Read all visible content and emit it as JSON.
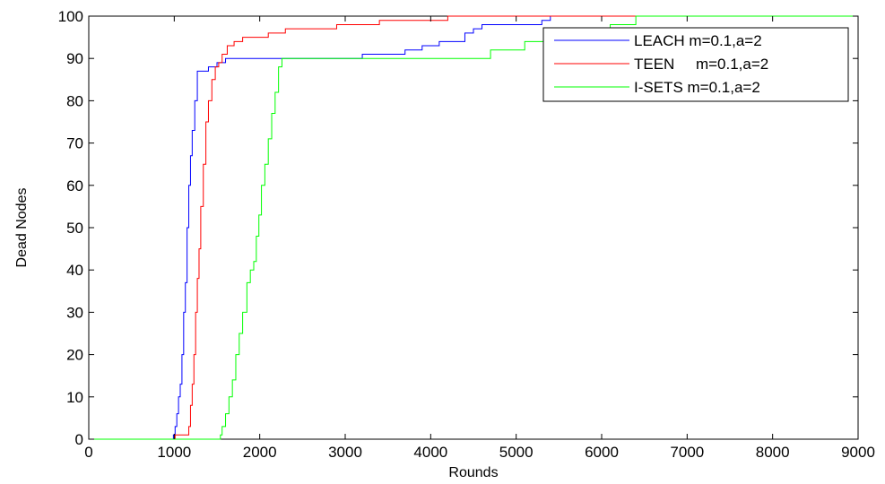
{
  "chart_data": {
    "type": "line",
    "title": "",
    "xlabel": "Rounds",
    "ylabel": "Dead Nodes",
    "xlim": [
      0,
      9000
    ],
    "ylim": [
      0,
      100
    ],
    "xticks": [
      0,
      1000,
      2000,
      3000,
      4000,
      5000,
      6000,
      7000,
      8000,
      9000
    ],
    "yticks": [
      0,
      10,
      20,
      30,
      40,
      50,
      60,
      70,
      80,
      90,
      100
    ],
    "grid": false,
    "legend_position": "top-right",
    "series": [
      {
        "name": "LEACH  m=0.1,a=2",
        "color": "#0000ff",
        "points": [
          [
            0,
            0
          ],
          [
            980,
            0
          ],
          [
            990,
            1
          ],
          [
            1010,
            3
          ],
          [
            1030,
            6
          ],
          [
            1050,
            10
          ],
          [
            1070,
            13
          ],
          [
            1090,
            20
          ],
          [
            1110,
            30
          ],
          [
            1130,
            37
          ],
          [
            1150,
            50
          ],
          [
            1170,
            60
          ],
          [
            1190,
            67
          ],
          [
            1210,
            73
          ],
          [
            1240,
            80
          ],
          [
            1270,
            87
          ],
          [
            1350,
            87
          ],
          [
            1400,
            88
          ],
          [
            1500,
            89
          ],
          [
            1600,
            90
          ],
          [
            3100,
            90
          ],
          [
            3200,
            91
          ],
          [
            3700,
            92
          ],
          [
            3900,
            93
          ],
          [
            4100,
            94
          ],
          [
            4400,
            96
          ],
          [
            4500,
            97
          ],
          [
            4600,
            98
          ],
          [
            5300,
            99
          ],
          [
            5400,
            100
          ],
          [
            9000,
            100
          ]
        ]
      },
      {
        "name": "TEEN     m=0.1,a=2",
        "color": "#ff0000",
        "points": [
          [
            0,
            0
          ],
          [
            1000,
            0
          ],
          [
            1010,
            1
          ],
          [
            1150,
            1
          ],
          [
            1170,
            3
          ],
          [
            1190,
            8
          ],
          [
            1210,
            13
          ],
          [
            1230,
            20
          ],
          [
            1250,
            30
          ],
          [
            1270,
            38
          ],
          [
            1290,
            45
          ],
          [
            1310,
            55
          ],
          [
            1340,
            65
          ],
          [
            1370,
            75
          ],
          [
            1400,
            80
          ],
          [
            1440,
            85
          ],
          [
            1480,
            88
          ],
          [
            1520,
            89
          ],
          [
            1560,
            91
          ],
          [
            1620,
            93
          ],
          [
            1700,
            94
          ],
          [
            1800,
            95
          ],
          [
            2100,
            96
          ],
          [
            2300,
            97
          ],
          [
            2900,
            98
          ],
          [
            3400,
            99
          ],
          [
            4200,
            100
          ],
          [
            9000,
            100
          ]
        ]
      },
      {
        "name": "I-SETS  m=0.1,a=2",
        "color": "#00ff00",
        "points": [
          [
            0,
            0
          ],
          [
            1520,
            0
          ],
          [
            1540,
            1
          ],
          [
            1560,
            3
          ],
          [
            1600,
            6
          ],
          [
            1640,
            10
          ],
          [
            1680,
            14
          ],
          [
            1720,
            20
          ],
          [
            1760,
            25
          ],
          [
            1800,
            30
          ],
          [
            1850,
            37
          ],
          [
            1890,
            40
          ],
          [
            1930,
            42
          ],
          [
            1960,
            48
          ],
          [
            1990,
            53
          ],
          [
            2020,
            60
          ],
          [
            2060,
            65
          ],
          [
            2100,
            71
          ],
          [
            2140,
            77
          ],
          [
            2180,
            82
          ],
          [
            2220,
            88
          ],
          [
            2260,
            90
          ],
          [
            4400,
            90
          ],
          [
            4700,
            92
          ],
          [
            5100,
            94
          ],
          [
            5600,
            96
          ],
          [
            6100,
            98
          ],
          [
            6400,
            100
          ],
          [
            9000,
            100
          ]
        ]
      }
    ]
  }
}
